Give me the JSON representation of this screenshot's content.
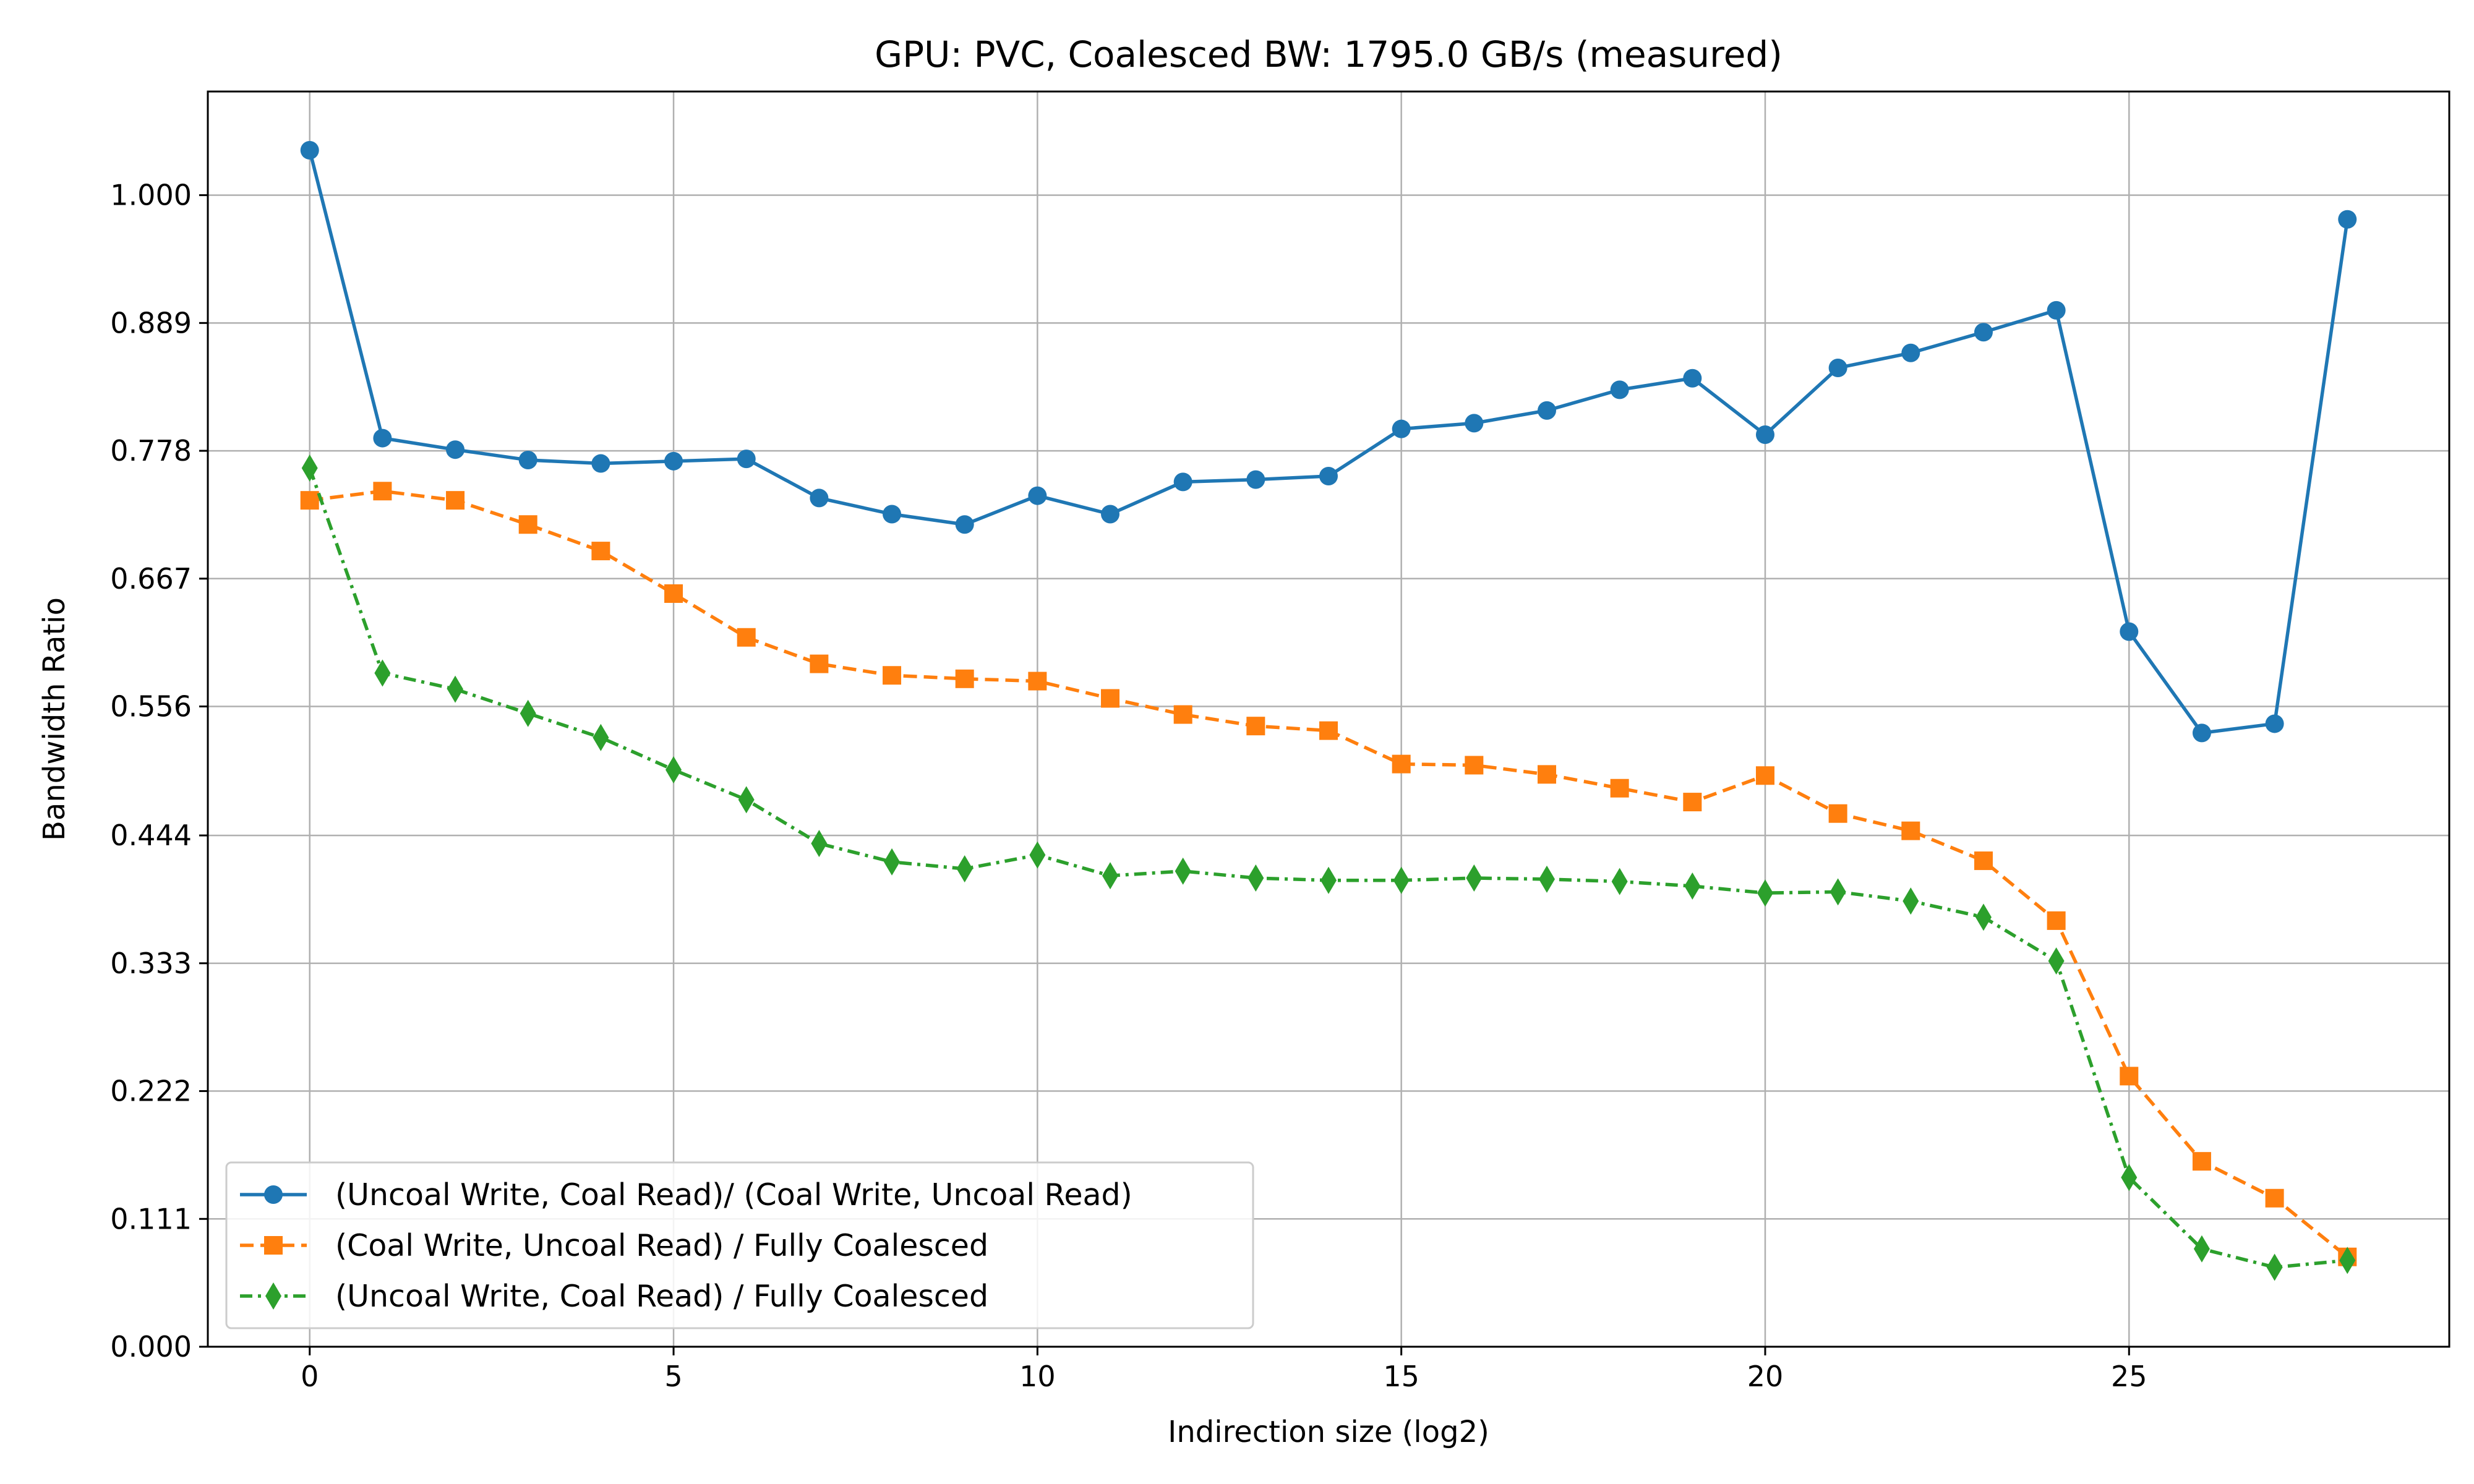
{
  "chart_data": {
    "type": "line",
    "title": "GPU: PVC, Coalesced BW: 1795.0 GB/s (measured)",
    "xlabel": "Indirection size (log2)",
    "ylabel": "Bandwidth Ratio",
    "xlim": [
      -1.4,
      29.4
    ],
    "ylim": [
      0.0,
      1.09
    ],
    "xticks": [
      0,
      5,
      10,
      15,
      20,
      25
    ],
    "xtick_labels": [
      "0",
      "5",
      "10",
      "15",
      "20",
      "25"
    ],
    "yticks": [
      0.0,
      0.111,
      0.222,
      0.333,
      0.444,
      0.556,
      0.667,
      0.778,
      0.889,
      1.0
    ],
    "ytick_labels": [
      "0.000",
      "0.111",
      "0.222",
      "0.333",
      "0.444",
      "0.556",
      "0.667",
      "0.778",
      "0.889",
      "1.000"
    ],
    "grid": true,
    "legend_position": "lower-left",
    "x": [
      0,
      1,
      2,
      3,
      4,
      5,
      6,
      7,
      8,
      9,
      10,
      11,
      12,
      13,
      14,
      15,
      16,
      17,
      18,
      19,
      20,
      21,
      22,
      23,
      24,
      25,
      26,
      27,
      28
    ],
    "series": [
      {
        "name": "(Uncoal Write, Coal Read)/ (Coal Write, Uncoal Read)",
        "color": "#1f77b4",
        "marker": "circle",
        "linestyle": "solid",
        "values": [
          1.039,
          0.789,
          0.779,
          0.77,
          0.767,
          0.769,
          0.771,
          0.737,
          0.723,
          0.714,
          0.739,
          0.723,
          0.751,
          0.753,
          0.756,
          0.797,
          0.802,
          0.813,
          0.831,
          0.841,
          0.792,
          0.85,
          0.863,
          0.881,
          0.9,
          0.621,
          0.533,
          0.541,
          0.979
        ]
      },
      {
        "name": "(Coal Write, Uncoal Read) / Fully Coalesced",
        "color": "#ff7f0e",
        "marker": "square",
        "linestyle": "dashed",
        "values": [
          0.735,
          0.743,
          0.735,
          0.714,
          0.691,
          0.654,
          0.616,
          0.593,
          0.583,
          0.58,
          0.578,
          0.563,
          0.549,
          0.539,
          0.535,
          0.506,
          0.505,
          0.497,
          0.485,
          0.473,
          0.496,
          0.463,
          0.448,
          0.422,
          0.37,
          0.235,
          0.161,
          0.129,
          0.078
        ]
      },
      {
        "name": "(Uncoal Write, Coal Read) / Fully Coalesced",
        "color": "#2ca02c",
        "marker": "diamond",
        "linestyle": "dashdot",
        "values": [
          0.763,
          0.585,
          0.571,
          0.55,
          0.529,
          0.501,
          0.475,
          0.437,
          0.421,
          0.415,
          0.427,
          0.409,
          0.413,
          0.407,
          0.405,
          0.405,
          0.407,
          0.406,
          0.404,
          0.4,
          0.394,
          0.395,
          0.387,
          0.373,
          0.335,
          0.147,
          0.085,
          0.069,
          0.075
        ]
      }
    ]
  }
}
